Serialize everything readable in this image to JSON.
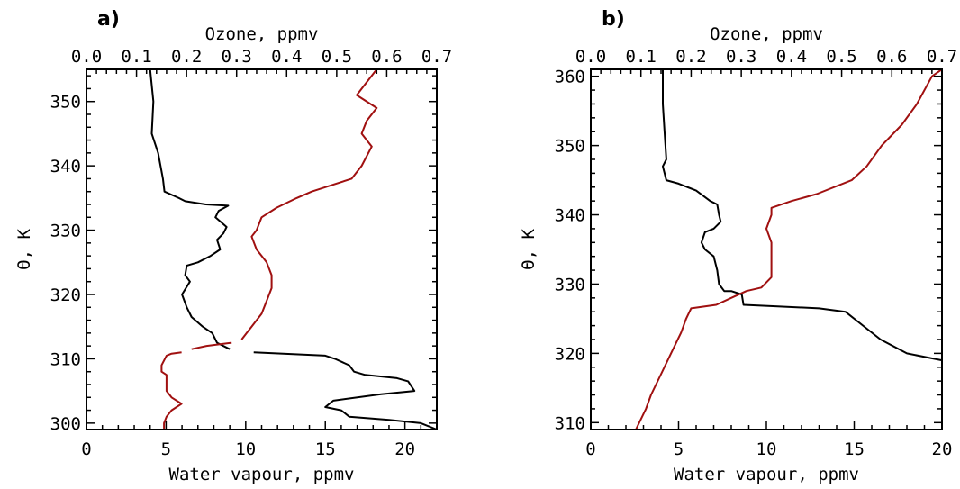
{
  "chart_data": [
    {
      "type": "line",
      "panel_label": "a)",
      "xlabel": "Water vapour, ppmv",
      "x2label": "Ozone, ppmv",
      "ylabel": "Θ, K",
      "xlim": [
        0,
        22
      ],
      "x2lim": [
        0.0,
        0.7
      ],
      "ylim": [
        299,
        355
      ],
      "x_ticks": [
        0,
        5,
        10,
        15,
        20
      ],
      "x2_ticks": [
        "0.0",
        "0.1",
        "0.2",
        "0.3",
        "0.4",
        "0.5",
        "0.6",
        "0.7"
      ],
      "y_ticks": [
        300,
        310,
        320,
        330,
        340,
        350
      ],
      "colors": {
        "water_vapour": "#000000",
        "ozone": "#a01010"
      },
      "series": [
        {
          "axis": "bottom",
          "segments": [
            [
              [
                4.0,
                355
              ],
              [
                4.2,
                350
              ],
              [
                4.1,
                345
              ],
              [
                4.5,
                342
              ],
              [
                4.8,
                338
              ],
              [
                4.9,
                336
              ],
              [
                5.8,
                335
              ],
              [
                6.2,
                334.5
              ],
              [
                7.5,
                334
              ],
              [
                8.9,
                333.8
              ],
              [
                8.3,
                333
              ],
              [
                8.1,
                332
              ],
              [
                8.8,
                330.5
              ],
              [
                8.6,
                329.5
              ],
              [
                8.2,
                328.5
              ],
              [
                8.4,
                327
              ],
              [
                7.8,
                326
              ],
              [
                7.0,
                325
              ],
              [
                6.3,
                324.5
              ],
              [
                6.2,
                323
              ],
              [
                6.5,
                322
              ],
              [
                6.0,
                320
              ],
              [
                6.3,
                318
              ],
              [
                6.6,
                316.5
              ],
              [
                7.3,
                315
              ],
              [
                7.9,
                314
              ],
              [
                8.1,
                313
              ],
              [
                8.2,
                312.5
              ],
              [
                9.0,
                311.5
              ]
            ],
            [
              [
                10.5,
                311
              ],
              [
                15.0,
                310.5
              ],
              [
                15.6,
                310
              ],
              [
                16.5,
                309
              ],
              [
                16.8,
                308
              ],
              [
                17.5,
                307.5
              ],
              [
                19.5,
                307
              ],
              [
                20.2,
                306.5
              ],
              [
                20.6,
                305
              ],
              [
                18.5,
                304.5
              ],
              [
                15.5,
                303.5
              ],
              [
                15.0,
                302.5
              ],
              [
                16.0,
                302
              ],
              [
                16.5,
                301
              ],
              [
                19.0,
                300.5
              ],
              [
                21.0,
                300
              ],
              [
                22.0,
                299
              ]
            ]
          ]
        },
        {
          "axis": "top",
          "segments": [
            [
              [
                0.58,
                355
              ],
              [
                0.56,
                353
              ],
              [
                0.54,
                351
              ],
              [
                0.58,
                349
              ],
              [
                0.56,
                347
              ],
              [
                0.55,
                345
              ],
              [
                0.57,
                343
              ],
              [
                0.55,
                340
              ],
              [
                0.53,
                338
              ],
              [
                0.49,
                337
              ],
              [
                0.45,
                336
              ],
              [
                0.42,
                335
              ],
              [
                0.38,
                333.5
              ],
              [
                0.35,
                332
              ],
              [
                0.34,
                330
              ],
              [
                0.33,
                329
              ],
              [
                0.34,
                327
              ],
              [
                0.36,
                325
              ],
              [
                0.37,
                323
              ],
              [
                0.37,
                321
              ],
              [
                0.36,
                319
              ],
              [
                0.35,
                317
              ],
              [
                0.33,
                315
              ],
              [
                0.32,
                314
              ],
              [
                0.31,
                313
              ]
            ],
            [
              [
                0.29,
                312.5
              ],
              [
                0.24,
                312
              ],
              [
                0.21,
                311.5
              ]
            ],
            [
              [
                0.19,
                311
              ],
              [
                0.17,
                310.8
              ],
              [
                0.16,
                310.5
              ],
              [
                0.15,
                309
              ],
              [
                0.15,
                308
              ],
              [
                0.16,
                307.5
              ],
              [
                0.16,
                305
              ],
              [
                0.17,
                304
              ],
              [
                0.19,
                303
              ],
              [
                0.17,
                302
              ],
              [
                0.16,
                301
              ],
              [
                0.155,
                300
              ],
              [
                0.155,
                299
              ]
            ]
          ]
        }
      ]
    },
    {
      "type": "line",
      "panel_label": "b)",
      "xlabel": "Water vapour, ppmv",
      "x2label": "Ozone, ppmv",
      "ylabel": "Θ, K",
      "xlim": [
        0,
        20
      ],
      "x2lim": [
        0.0,
        0.7
      ],
      "ylim": [
        309,
        361
      ],
      "x_ticks": [
        0,
        5,
        10,
        15,
        20
      ],
      "x2_ticks": [
        "0.0",
        "0.1",
        "0.2",
        "0.3",
        "0.4",
        "0.5",
        "0.6",
        "0.7"
      ],
      "y_ticks": [
        310,
        320,
        330,
        340,
        350,
        360
      ],
      "colors": {
        "water_vapour": "#000000",
        "ozone": "#a01010"
      },
      "series": [
        {
          "axis": "bottom",
          "segments": [
            [
              [
                4.1,
                361
              ],
              [
                4.1,
                356
              ],
              [
                4.2,
                352
              ],
              [
                4.3,
                348
              ],
              [
                4.1,
                347
              ],
              [
                4.3,
                345
              ],
              [
                5.0,
                344.5
              ],
              [
                6.0,
                343.5
              ],
              [
                6.8,
                342
              ],
              [
                7.2,
                341.5
              ],
              [
                7.3,
                340
              ],
              [
                7.4,
                339
              ],
              [
                7.0,
                338
              ],
              [
                6.5,
                337.5
              ],
              [
                6.3,
                336
              ],
              [
                6.5,
                335
              ],
              [
                7.0,
                334
              ],
              [
                7.2,
                332
              ],
              [
                7.3,
                330
              ],
              [
                7.6,
                329
              ],
              [
                8.0,
                329
              ],
              [
                8.6,
                328.5
              ],
              [
                8.7,
                327
              ],
              [
                10.5,
                326.8
              ],
              [
                13.0,
                326.5
              ],
              [
                14.5,
                326
              ],
              [
                15.5,
                324
              ],
              [
                16.5,
                322
              ],
              [
                18.0,
                320
              ],
              [
                20.0,
                319
              ]
            ]
          ]
        },
        {
          "axis": "top",
          "segments": [
            [
              [
                0.09,
                309
              ],
              [
                0.11,
                312
              ],
              [
                0.12,
                314
              ],
              [
                0.14,
                317
              ],
              [
                0.16,
                320
              ],
              [
                0.18,
                323
              ],
              [
                0.19,
                325
              ],
              [
                0.2,
                326.5
              ],
              [
                0.25,
                327
              ],
              [
                0.28,
                328
              ],
              [
                0.31,
                329
              ],
              [
                0.34,
                329.5
              ],
              [
                0.36,
                331
              ],
              [
                0.36,
                334
              ],
              [
                0.36,
                336
              ],
              [
                0.35,
                338
              ],
              [
                0.36,
                340
              ],
              [
                0.36,
                341
              ],
              [
                0.4,
                342
              ],
              [
                0.45,
                343
              ],
              [
                0.52,
                345
              ],
              [
                0.55,
                347
              ],
              [
                0.58,
                350
              ],
              [
                0.62,
                353
              ],
              [
                0.65,
                356
              ],
              [
                0.68,
                360
              ],
              [
                0.7,
                361
              ]
            ]
          ]
        }
      ]
    }
  ]
}
